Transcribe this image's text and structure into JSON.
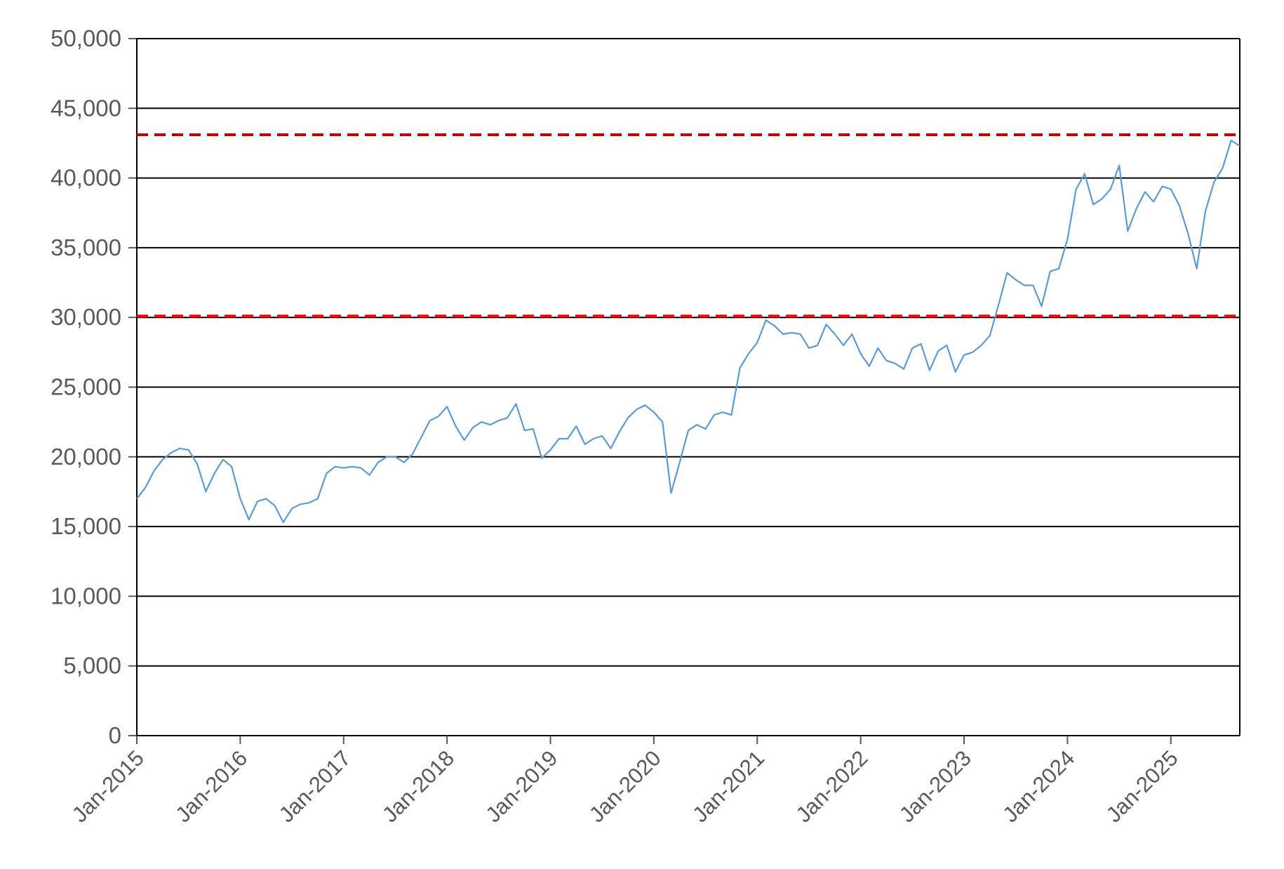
{
  "chart_data": {
    "type": "line",
    "title": "",
    "xlabel": "",
    "ylabel": "",
    "ylim": [
      0,
      50000
    ],
    "xlim": [
      "2015-01",
      "2025-09"
    ],
    "y_ticks": [
      0,
      5000,
      10000,
      15000,
      20000,
      25000,
      30000,
      35000,
      40000,
      45000,
      50000
    ],
    "y_tick_labels": [
      "0",
      "5,000",
      "10,000",
      "15,000",
      "20,000",
      "25,000",
      "30,000",
      "35,000",
      "40,000",
      "45,000",
      "50,000"
    ],
    "x_ticks": [
      "2015-01",
      "2016-01",
      "2017-01",
      "2018-01",
      "2019-01",
      "2020-01",
      "2021-01",
      "2022-01",
      "2023-01",
      "2024-01",
      "2025-01"
    ],
    "x_tick_labels": [
      "Jan-2015",
      "Jan-2016",
      "Jan-2017",
      "Jan-2018",
      "Jan-2019",
      "Jan-2020",
      "Jan-2021",
      "Jan-2022",
      "Jan-2023",
      "Jan-2024",
      "Jan-2025"
    ],
    "grid": true,
    "legend": "none",
    "series": [
      {
        "color": "#5b9bd5",
        "points": [
          [
            "2015-01",
            17000
          ],
          [
            "2015-02",
            17800
          ],
          [
            "2015-03",
            19000
          ],
          [
            "2015-04",
            19800
          ],
          [
            "2015-05",
            20300
          ],
          [
            "2015-06",
            20600
          ],
          [
            "2015-07",
            20500
          ],
          [
            "2015-08",
            19500
          ],
          [
            "2015-09",
            17500
          ],
          [
            "2015-10",
            18800
          ],
          [
            "2015-11",
            19800
          ],
          [
            "2015-12",
            19300
          ],
          [
            "2016-01",
            17000
          ],
          [
            "2016-02",
            15500
          ],
          [
            "2016-03",
            16800
          ],
          [
            "2016-04",
            17000
          ],
          [
            "2016-05",
            16500
          ],
          [
            "2016-06",
            15300
          ],
          [
            "2016-07",
            16300
          ],
          [
            "2016-08",
            16600
          ],
          [
            "2016-09",
            16700
          ],
          [
            "2016-10",
            17000
          ],
          [
            "2016-11",
            18800
          ],
          [
            "2016-12",
            19300
          ],
          [
            "2017-01",
            19200
          ],
          [
            "2017-02",
            19300
          ],
          [
            "2017-03",
            19200
          ],
          [
            "2017-04",
            18700
          ],
          [
            "2017-05",
            19600
          ],
          [
            "2017-06",
            20000
          ],
          [
            "2017-07",
            20000
          ],
          [
            "2017-08",
            19600
          ],
          [
            "2017-09",
            20200
          ],
          [
            "2017-10",
            21400
          ],
          [
            "2017-11",
            22600
          ],
          [
            "2017-12",
            22900
          ],
          [
            "2018-01",
            23600
          ],
          [
            "2018-02",
            22200
          ],
          [
            "2018-03",
            21200
          ],
          [
            "2018-04",
            22100
          ],
          [
            "2018-05",
            22500
          ],
          [
            "2018-06",
            22300
          ],
          [
            "2018-07",
            22600
          ],
          [
            "2018-08",
            22800
          ],
          [
            "2018-09",
            23800
          ],
          [
            "2018-10",
            21900
          ],
          [
            "2018-11",
            22000
          ],
          [
            "2018-12",
            19900
          ],
          [
            "2019-01",
            20500
          ],
          [
            "2019-02",
            21300
          ],
          [
            "2019-03",
            21300
          ],
          [
            "2019-04",
            22200
          ],
          [
            "2019-05",
            20900
          ],
          [
            "2019-06",
            21300
          ],
          [
            "2019-07",
            21500
          ],
          [
            "2019-08",
            20600
          ],
          [
            "2019-09",
            21800
          ],
          [
            "2019-10",
            22800
          ],
          [
            "2019-11",
            23400
          ],
          [
            "2019-12",
            23700
          ],
          [
            "2020-01",
            23200
          ],
          [
            "2020-02",
            22500
          ],
          [
            "2020-03",
            17400
          ],
          [
            "2020-04",
            19600
          ],
          [
            "2020-05",
            21900
          ],
          [
            "2020-06",
            22300
          ],
          [
            "2020-07",
            22000
          ],
          [
            "2020-08",
            23000
          ],
          [
            "2020-09",
            23200
          ],
          [
            "2020-10",
            23000
          ],
          [
            "2020-11",
            26400
          ],
          [
            "2020-12",
            27400
          ],
          [
            "2021-01",
            28200
          ],
          [
            "2021-02",
            29800
          ],
          [
            "2021-03",
            29400
          ],
          [
            "2021-04",
            28800
          ],
          [
            "2021-05",
            28900
          ],
          [
            "2021-06",
            28800
          ],
          [
            "2021-07",
            27800
          ],
          [
            "2021-08",
            28000
          ],
          [
            "2021-09",
            29500
          ],
          [
            "2021-10",
            28800
          ],
          [
            "2021-11",
            28000
          ],
          [
            "2021-12",
            28800
          ],
          [
            "2022-01",
            27400
          ],
          [
            "2022-02",
            26500
          ],
          [
            "2022-03",
            27800
          ],
          [
            "2022-04",
            26900
          ],
          [
            "2022-05",
            26700
          ],
          [
            "2022-06",
            26300
          ],
          [
            "2022-07",
            27800
          ],
          [
            "2022-08",
            28100
          ],
          [
            "2022-09",
            26200
          ],
          [
            "2022-10",
            27600
          ],
          [
            "2022-11",
            28000
          ],
          [
            "2022-12",
            26100
          ],
          [
            "2023-01",
            27300
          ],
          [
            "2023-02",
            27500
          ],
          [
            "2023-03",
            28000
          ],
          [
            "2023-04",
            28700
          ],
          [
            "2023-05",
            30900
          ],
          [
            "2023-06",
            33200
          ],
          [
            "2023-07",
            32700
          ],
          [
            "2023-08",
            32300
          ],
          [
            "2023-09",
            32300
          ],
          [
            "2023-10",
            30800
          ],
          [
            "2023-11",
            33300
          ],
          [
            "2023-12",
            33500
          ],
          [
            "2024-01",
            35600
          ],
          [
            "2024-02",
            39200
          ],
          [
            "2024-03",
            40300
          ],
          [
            "2024-04",
            38100
          ],
          [
            "2024-05",
            38500
          ],
          [
            "2024-06",
            39200
          ],
          [
            "2024-07",
            40900
          ],
          [
            "2024-08",
            36200
          ],
          [
            "2024-09",
            37800
          ],
          [
            "2024-10",
            39000
          ],
          [
            "2024-11",
            38300
          ],
          [
            "2024-12",
            39400
          ],
          [
            "2025-01",
            39200
          ],
          [
            "2025-02",
            38000
          ],
          [
            "2025-03",
            36000
          ],
          [
            "2025-04",
            33500
          ],
          [
            "2025-05",
            37600
          ],
          [
            "2025-06",
            39700
          ],
          [
            "2025-07",
            40700
          ],
          [
            "2025-08",
            42700
          ],
          [
            "2025-09",
            42300
          ]
        ]
      }
    ],
    "reference_lines": [
      {
        "y": 43100,
        "color": "#c00000",
        "style": "dashed"
      },
      {
        "y": 30100,
        "color": "#ff0000",
        "style": "dashed"
      }
    ]
  }
}
